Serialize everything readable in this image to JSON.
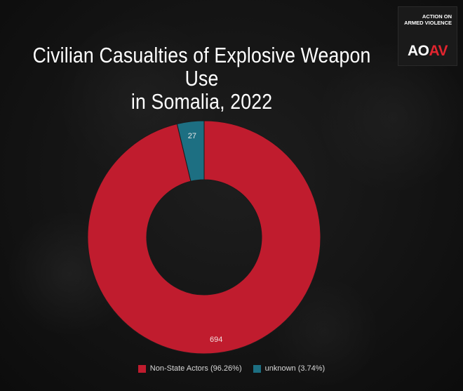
{
  "title_line1": "Civilian Casualties of Explosive Weapon Use",
  "title_line2": "in Somalia, 2022",
  "logo": {
    "tag_line1": "ACTION ON",
    "tag_line2": "ARMED VIOLENCE",
    "mark_part1": "AO",
    "mark_part2": "AV"
  },
  "chart_data": {
    "type": "pie",
    "title": "Civilian Casualties of Explosive Weapon Use in Somalia, 2022",
    "donut": true,
    "categories": [
      "Non-State Actors",
      "unknown"
    ],
    "values": [
      694,
      27
    ],
    "percentages": [
      "96.26%",
      "3.74%"
    ],
    "colors": [
      "#c01c2e",
      "#1d6f82"
    ],
    "data_labels": [
      "694",
      "27"
    ],
    "legend": [
      "Non-State Actors (96.26%)",
      "unknown (3.74%)"
    ],
    "legend_position": "bottom"
  }
}
